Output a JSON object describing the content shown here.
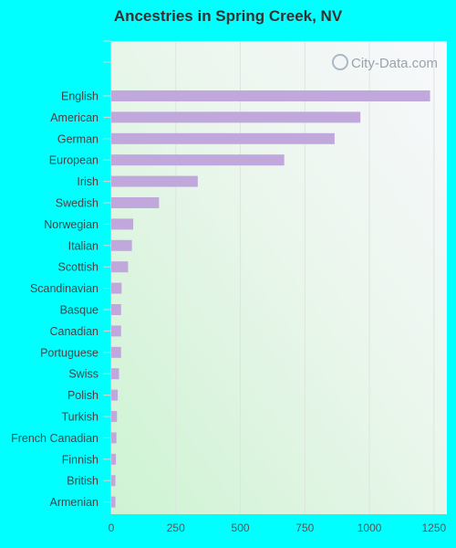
{
  "chart_data": {
    "type": "bar",
    "orientation": "horizontal",
    "title": "Ancestries in Spring Creek, NV",
    "categories": [
      "English",
      "American",
      "German",
      "European",
      "Irish",
      "Swedish",
      "Norwegian",
      "Italian",
      "Scottish",
      "Scandinavian",
      "Basque",
      "Canadian",
      "Portuguese",
      "Swiss",
      "Polish",
      "Turkish",
      "French Canadian",
      "Finnish",
      "British",
      "Armenian"
    ],
    "values": [
      1235,
      965,
      865,
      670,
      335,
      185,
      85,
      80,
      65,
      40,
      38,
      38,
      38,
      30,
      25,
      22,
      20,
      18,
      16,
      16
    ],
    "xlim": [
      0,
      1300
    ],
    "xticks": [
      0,
      250,
      500,
      750,
      1000,
      1250
    ],
    "xlabel": "",
    "ylabel": "",
    "grid": true,
    "bar_color": "#c0a8dc",
    "watermark": "City-Data.com"
  }
}
